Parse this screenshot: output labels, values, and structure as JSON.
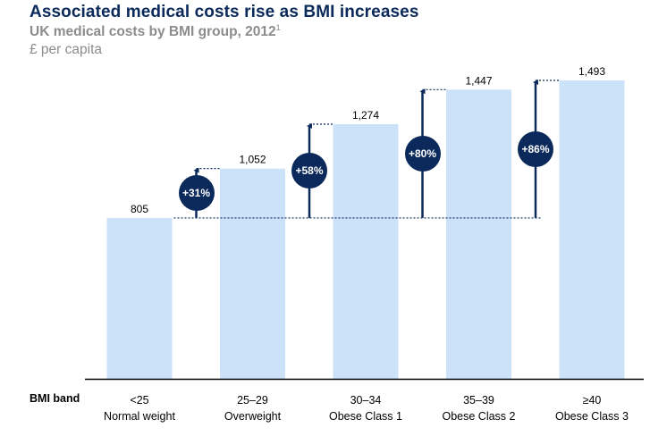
{
  "header": {
    "title": "Associated medical costs rise as BMI increases",
    "subtitle": "UK medical costs by BMI group, 2012",
    "subtitle_footnote": "1",
    "unit": "£ per capita"
  },
  "chart_data": {
    "type": "bar",
    "title": "UK medical costs by BMI group, 2012",
    "ylabel": "£ per capita",
    "xlabel": "BMI band",
    "ylim": [
      0,
      1560
    ],
    "grid": false,
    "categories": [
      "<25",
      "25–29",
      "30–34",
      "35–39",
      "≥40"
    ],
    "category_sublabels": [
      "Normal weight",
      "Overweight",
      "Obese Class 1",
      "Obese Class 2",
      "Obese Class 3"
    ],
    "values": [
      805,
      1052,
      1274,
      1447,
      1493
    ],
    "value_labels": [
      "805",
      "1,052",
      "1,274",
      "1,447",
      "1,493"
    ],
    "annotations": [
      {
        "label": "+31%",
        "from": 805,
        "to": 1052,
        "category": "25–29"
      },
      {
        "label": "+58%",
        "from": 805,
        "to": 1274,
        "category": "30–34"
      },
      {
        "label": "+80%",
        "from": 805,
        "to": 1447,
        "category": "35–39"
      },
      {
        "label": "+86%",
        "from": 805,
        "to": 1493,
        "category": "≥40"
      }
    ],
    "colors": {
      "bar": "#cce2f9",
      "accent": "#0b2a5b",
      "axis": "#000000"
    }
  }
}
